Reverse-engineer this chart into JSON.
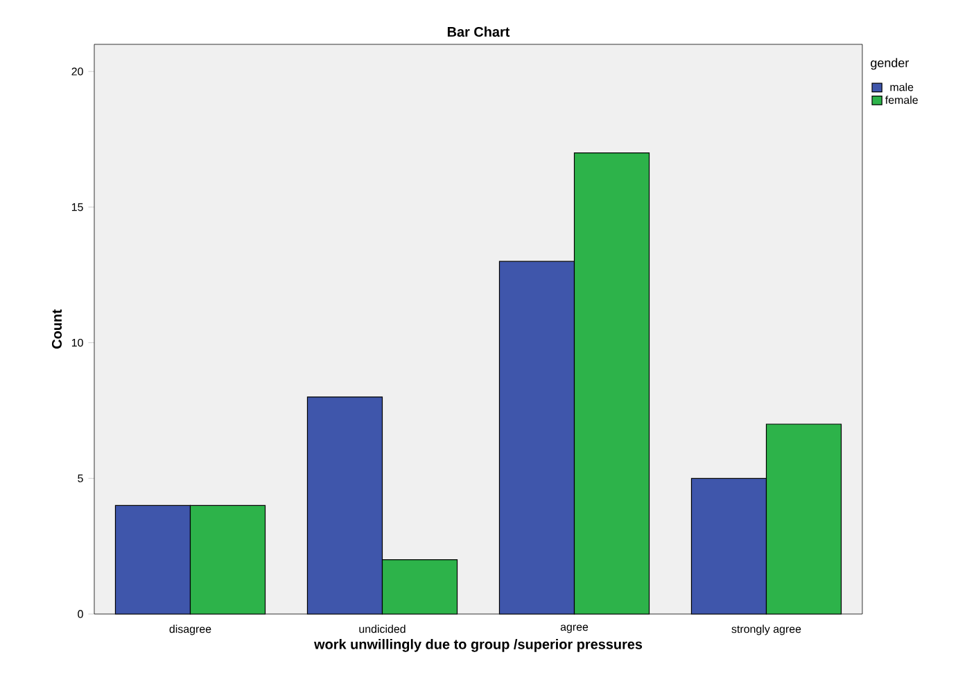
{
  "chart_data": {
    "type": "bar",
    "title": "Bar Chart",
    "xlabel": "work unwillingly due to group /superior pressures",
    "ylabel": "Count",
    "legend_title": "gender",
    "legend": "top right",
    "categories": [
      "disagree",
      "undicided",
      "agree",
      "strongly agree"
    ],
    "series": [
      {
        "name": "male",
        "color": "#3f56ab",
        "values": [
          4,
          8,
          13,
          5
        ]
      },
      {
        "name": "female",
        "color": "#2db34a",
        "values": [
          4,
          2,
          17,
          7
        ]
      }
    ],
    "ylim": [
      0,
      21
    ],
    "yticks": [
      0,
      5,
      10,
      15,
      20
    ]
  }
}
